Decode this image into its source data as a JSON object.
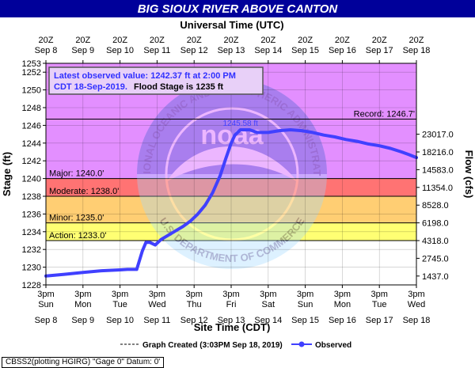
{
  "title": "BIG SIOUX RIVER ABOVE CANTON",
  "top_axis_title": "Universal Time (UTC)",
  "bottom_axis_title": "Site Time (CDT)",
  "y_left_title": "Stage (ft)",
  "y_right_title": "Flow (cfs)",
  "info_box": {
    "line1": "Latest observed value: 1242.37 ft at 2:00 PM",
    "line2_prefix": "CDT 18-Sep-2019.",
    "line2_suffix": "Flood Stage is 1235 ft"
  },
  "peak_label": "1245.58 ft",
  "record_label": "Record: 1246.7'",
  "legend": {
    "graph_created": "Graph Created (3:03PM Sep 18, 2019)",
    "observed": "Observed"
  },
  "footer": "CBSS2(plotting HGIRG) \"Gage 0\" Datum: 0'",
  "top_ticks": [
    {
      "hour": "20Z",
      "date": "Sep 8"
    },
    {
      "hour": "20Z",
      "date": "Sep 9"
    },
    {
      "hour": "20Z",
      "date": "Sep 10"
    },
    {
      "hour": "20Z",
      "date": "Sep 11"
    },
    {
      "hour": "20Z",
      "date": "Sep 12"
    },
    {
      "hour": "20Z",
      "date": "Sep 13"
    },
    {
      "hour": "20Z",
      "date": "Sep 14"
    },
    {
      "hour": "20Z",
      "date": "Sep 15"
    },
    {
      "hour": "20Z",
      "date": "Sep 16"
    },
    {
      "hour": "20Z",
      "date": "Sep 17"
    },
    {
      "hour": "20Z",
      "date": "Sep 18"
    }
  ],
  "bottom_ticks": [
    {
      "time": "3pm",
      "day": "Sun",
      "date": "Sep 8"
    },
    {
      "time": "3pm",
      "day": "Mon",
      "date": "Sep 9"
    },
    {
      "time": "3pm",
      "day": "Tue",
      "date": "Sep 10"
    },
    {
      "time": "3pm",
      "day": "Wed",
      "date": "Sep 11"
    },
    {
      "time": "3pm",
      "day": "Thu",
      "date": "Sep 12"
    },
    {
      "time": "3pm",
      "day": "Fri",
      "date": "Sep 13"
    },
    {
      "time": "3pm",
      "day": "Sat",
      "date": "Sep 14"
    },
    {
      "time": "3pm",
      "day": "Sun",
      "date": "Sep 15"
    },
    {
      "time": "3pm",
      "day": "Mon",
      "date": "Sep 16"
    },
    {
      "time": "3pm",
      "day": "Tue",
      "date": "Sep 17"
    },
    {
      "time": "3pm",
      "day": "Wed",
      "date": "Sep 18"
    }
  ],
  "watermark": {
    "center": "noaa",
    "top_arc": "NATIONAL OCEANIC AND ATMOSPHERIC ADMINISTRATION",
    "bottom_arc": "U.S. DEPARTMENT OF COMMERCE"
  },
  "chart_data": {
    "type": "line",
    "x_unit": "days since 3pm CDT Sep 8, 2019",
    "ylim": [
      1228,
      1253
    ],
    "xlim": [
      0,
      10
    ],
    "left_ticks": [
      1228,
      1230,
      1232,
      1234,
      1236,
      1238,
      1240,
      1242,
      1244,
      1246,
      1248,
      1250,
      1252,
      1253
    ],
    "right_ticks": [
      {
        "stage": 1229.0,
        "label": "1437.0"
      },
      {
        "stage": 1231.0,
        "label": "2745.0"
      },
      {
        "stage": 1233.0,
        "label": "4318.0"
      },
      {
        "stage": 1235.0,
        "label": "6198.0"
      },
      {
        "stage": 1237.0,
        "label": "8528.0"
      },
      {
        "stage": 1239.0,
        "label": "11354.0"
      },
      {
        "stage": 1241.0,
        "label": "14583.0"
      },
      {
        "stage": 1243.0,
        "label": "18216.0"
      },
      {
        "stage": 1245.0,
        "label": "23017.0"
      }
    ],
    "bands": [
      {
        "name": "Action",
        "label": "Action: 1233.0'",
        "from": 1233,
        "to": 1235,
        "color": "#ffff00"
      },
      {
        "name": "Minor",
        "label": "Minor: 1235.0'",
        "from": 1235,
        "to": 1238,
        "color": "#ffa500"
      },
      {
        "name": "Moderate",
        "label": "Moderate: 1238.0'",
        "from": 1238,
        "to": 1240,
        "color": "#ff0000"
      },
      {
        "name": "Major",
        "label": "Major: 1240.0'",
        "from": 1240,
        "to": 1253,
        "color": "#cc33ff"
      }
    ],
    "record_stage": 1246.7,
    "line_color": "#4040ff",
    "series": [
      {
        "name": "Observed",
        "points": [
          [
            0.0,
            1229.0
          ],
          [
            0.5,
            1229.2
          ],
          [
            1.0,
            1229.4
          ],
          [
            1.5,
            1229.6
          ],
          [
            2.0,
            1229.7
          ],
          [
            2.2,
            1229.75
          ],
          [
            2.45,
            1229.75
          ],
          [
            2.6,
            1231.8
          ],
          [
            2.7,
            1232.8
          ],
          [
            2.8,
            1232.8
          ],
          [
            2.95,
            1232.5
          ],
          [
            3.1,
            1233.1
          ],
          [
            3.3,
            1233.6
          ],
          [
            3.5,
            1234.1
          ],
          [
            3.7,
            1234.6
          ],
          [
            3.9,
            1235.2
          ],
          [
            4.1,
            1236.0
          ],
          [
            4.3,
            1237.0
          ],
          [
            4.5,
            1238.4
          ],
          [
            4.7,
            1240.3
          ],
          [
            4.85,
            1242.2
          ],
          [
            5.0,
            1244.0
          ],
          [
            5.1,
            1244.9
          ],
          [
            5.25,
            1245.5
          ],
          [
            5.5,
            1245.5
          ],
          [
            5.7,
            1245.2
          ],
          [
            6.0,
            1245.2
          ],
          [
            6.3,
            1245.4
          ],
          [
            6.6,
            1245.5
          ],
          [
            6.9,
            1245.4
          ],
          [
            7.2,
            1245.2
          ],
          [
            7.5,
            1244.9
          ],
          [
            7.8,
            1244.7
          ],
          [
            8.1,
            1244.4
          ],
          [
            8.4,
            1244.2
          ],
          [
            8.7,
            1243.9
          ],
          [
            9.0,
            1243.7
          ],
          [
            9.3,
            1243.4
          ],
          [
            9.6,
            1243.0
          ],
          [
            9.8,
            1242.7
          ],
          [
            10.0,
            1242.37
          ]
        ]
      }
    ]
  }
}
